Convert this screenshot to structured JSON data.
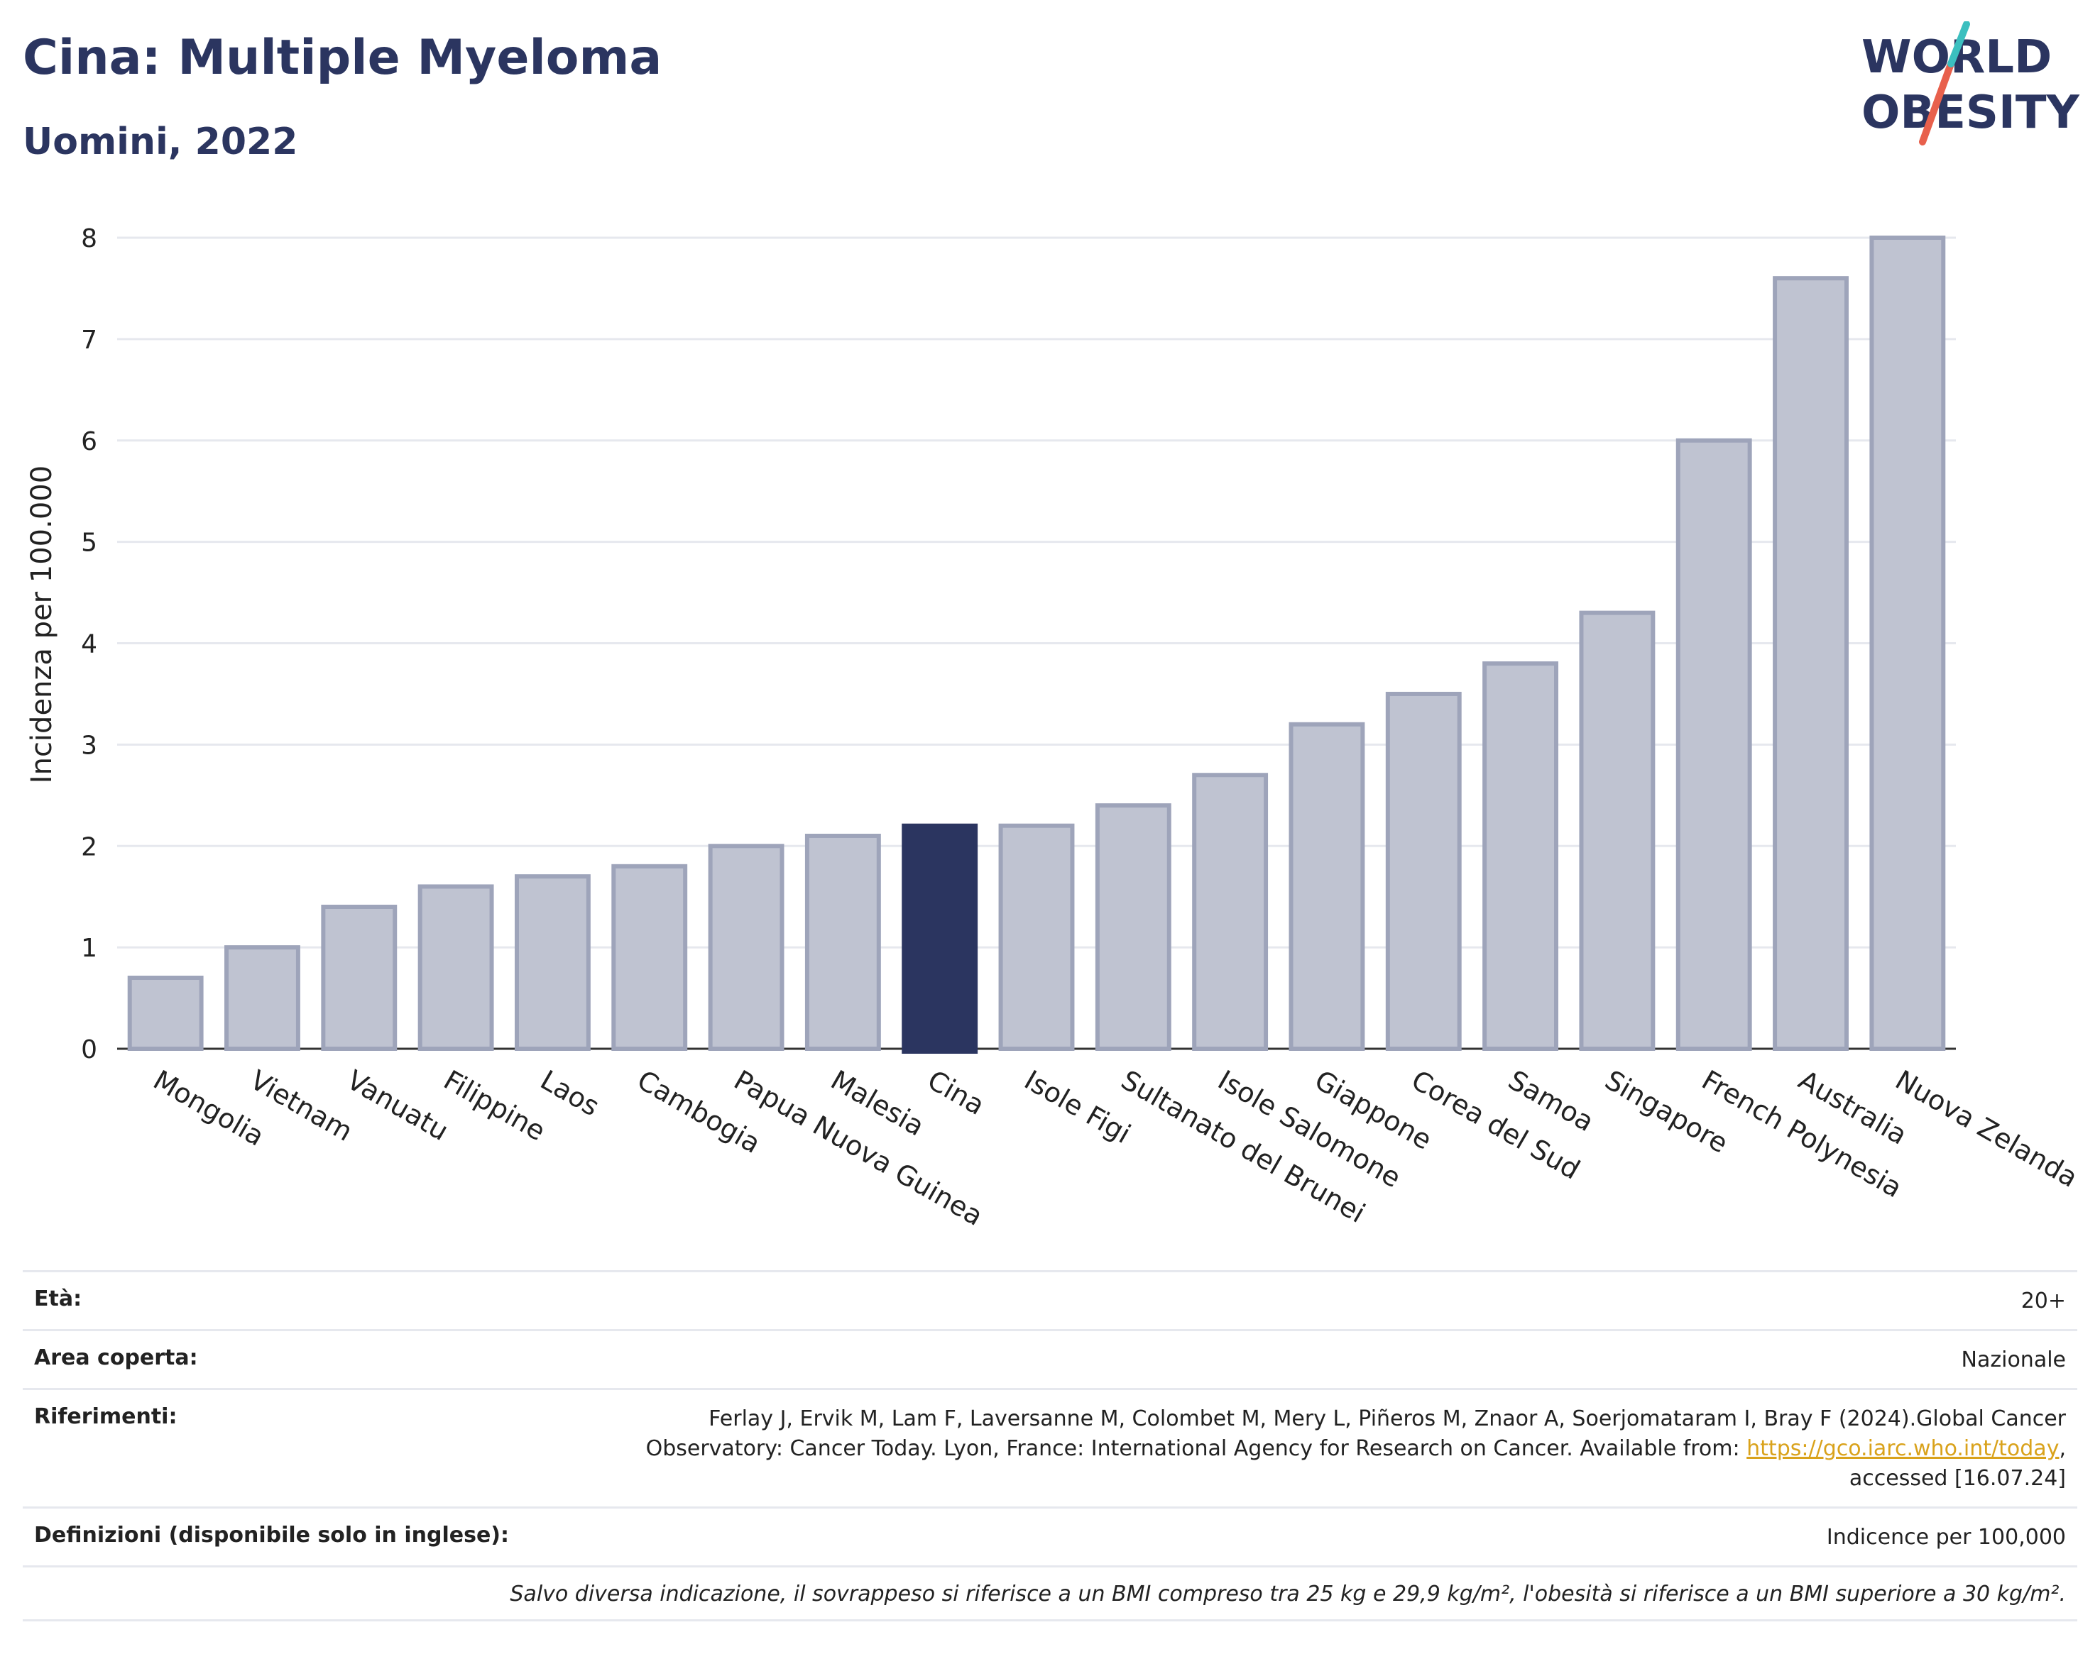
{
  "header": {
    "title": "Cina: Multiple Myeloma",
    "subtitle": "Uomini, 2022"
  },
  "logo": {
    "line1": "WORLD",
    "line2": "OBESITY",
    "colors": {
      "text": "#2b3560",
      "slash_red": "#e8604c",
      "slash_teal": "#3bbfbf"
    }
  },
  "chart_data": {
    "type": "bar",
    "title": "Cina: Multiple Myeloma",
    "subtitle": "Uomini, 2022",
    "xlabel": "",
    "ylabel": "Incidenza per 100.000",
    "ylim": [
      0,
      8
    ],
    "yticks": [
      "0",
      "1",
      "2",
      "3",
      "4",
      "5",
      "6",
      "7",
      "8"
    ],
    "grid": true,
    "highlight": "Cina",
    "colors": {
      "bar": "#bfc3d1",
      "bar_edge": "#9ea4ba",
      "highlight": "#2b3560"
    },
    "categories": [
      "Mongolia",
      "Vietnam",
      "Vanuatu",
      "Filippine",
      "Laos",
      "Cambogia",
      "Papua Nuova Guinea",
      "Malesia",
      "Cina",
      "Isole Figi",
      "Sultanato del Brunei",
      "Isole Salomone",
      "Giappone",
      "Corea del Sud",
      "Samoa",
      "Singapore",
      "French Polynesia",
      "Australia",
      "Nuova Zelanda"
    ],
    "values": [
      0.7,
      1.0,
      1.4,
      1.6,
      1.7,
      1.8,
      2.0,
      2.1,
      2.2,
      2.2,
      2.4,
      2.7,
      3.2,
      3.5,
      3.8,
      4.3,
      6.0,
      7.6,
      8.0
    ]
  },
  "info": {
    "age_label": "Età:",
    "age_value": "20+",
    "area_label": "Area coperta:",
    "area_value": "Nazionale",
    "ref_label": "Riferimenti:",
    "ref_text_1": "Ferlay J, Ervik M, Lam F, Laversanne M, Colombet M, Mery L, Piñeros M, Znaor A, Soerjomataram I, Bray F (2024).Global Cancer Observatory: Cancer Today. Lyon, France: International Agency for Research on Cancer. Available from: ",
    "ref_link": "https://gco.iarc.who.int/today",
    "ref_text_2": ", accessed [16.07.24]",
    "def_label": "Definizioni (disponibile solo in inglese):",
    "def_value": "Indicence per 100,000",
    "note": "Salvo diversa indicazione, il sovrappeso si riferisce a un BMI compreso tra 25 kg e 29,9 kg/m², l'obesità si riferisce a un BMI superiore a 30 kg/m²."
  }
}
